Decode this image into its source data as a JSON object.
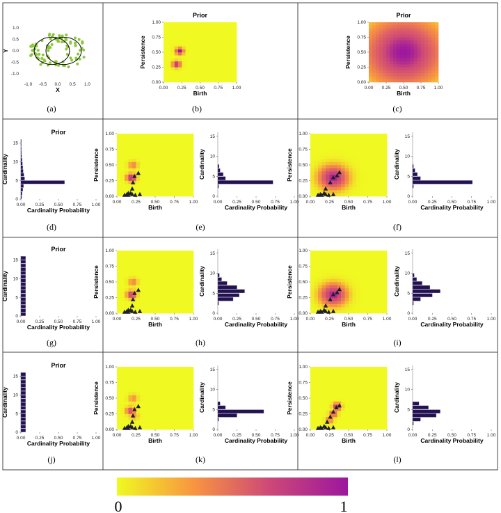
{
  "panels": [
    {
      "id": "a",
      "caption": "(a)",
      "kind": "scatter"
    },
    {
      "id": "b",
      "caption": "(b)",
      "kind": "heat",
      "title": "Prior"
    },
    {
      "id": "c",
      "caption": "(c)",
      "kind": "heat",
      "title": "Prior"
    },
    {
      "id": "d",
      "caption": "(d)",
      "kind": "card",
      "title": "Prior"
    },
    {
      "id": "e",
      "caption": "(e)",
      "kind": "heat+card"
    },
    {
      "id": "f",
      "caption": "(f)",
      "kind": "heat+card"
    },
    {
      "id": "g",
      "caption": "(g)",
      "kind": "card",
      "title": "Prior"
    },
    {
      "id": "h",
      "caption": "(h)",
      "kind": "heat+card"
    },
    {
      "id": "i",
      "caption": "(i)",
      "kind": "heat+card"
    },
    {
      "id": "j",
      "caption": "(j)",
      "kind": "card",
      "title": "Prior"
    },
    {
      "id": "k",
      "caption": "(k)",
      "kind": "heat+card"
    },
    {
      "id": "l",
      "caption": "(l)",
      "kind": "heat+card"
    }
  ],
  "labels": {
    "birth": "Birth",
    "persistence": "Persistence",
    "cardinality": "Cardinality",
    "card_prob": "Cardinality Probability",
    "x": "X",
    "y": "Y"
  },
  "ticks": {
    "unit": [
      "0.00",
      "0.25",
      "0.50",
      "0.75",
      "1.00"
    ],
    "xy": [
      "-1.0",
      "-0.5",
      "0.0",
      "0.5",
      "1.0"
    ],
    "card": [
      "0",
      "5",
      "10",
      "15"
    ]
  },
  "colorbar": {
    "min_label": "0",
    "max_label": "1",
    "colors": [
      "#f0f921",
      "#f89540",
      "#cc4778",
      "#9c179e"
    ]
  },
  "colors": {
    "point": "#8dc63f",
    "bar": "#24124f",
    "heat_low": "#eef23c",
    "tri": "#1f1f2e"
  },
  "chart_data": [
    {
      "panel": "a",
      "type": "scatter",
      "xlabel": "X",
      "ylabel": "Y",
      "xlim": [
        -1.25,
        1.25
      ],
      "ylim": [
        -1.25,
        1.25
      ],
      "circles": [
        {
          "cx": -0.2,
          "cy": 0.0,
          "r": 0.6
        },
        {
          "cx": 0.2,
          "cy": 0.0,
          "r": 0.6
        }
      ]
    },
    {
      "panel": "b",
      "type": "heatmap",
      "title": "Prior",
      "xlabel": "Birth",
      "ylabel": "Persistence",
      "xlim": [
        0,
        1
      ],
      "ylim": [
        0,
        1
      ],
      "blobs": [
        {
          "x": 0.18,
          "y": 0.3,
          "peak": 1.0,
          "sd": 0.035
        },
        {
          "x": 0.22,
          "y": 0.52,
          "peak": 1.0,
          "sd": 0.035
        }
      ]
    },
    {
      "panel": "c",
      "type": "heatmap",
      "title": "Prior",
      "xlabel": "Birth",
      "ylabel": "Persistence",
      "xlim": [
        0,
        1
      ],
      "ylim": [
        0,
        1
      ],
      "blobs": [
        {
          "x": 0.5,
          "y": 0.5,
          "peak": 1.0,
          "sd": 0.35
        }
      ]
    },
    {
      "panel": "d",
      "type": "bar",
      "title": "Prior",
      "xlabel": "Cardinality Probability",
      "ylabel": "Cardinality",
      "xlim": [
        0,
        1
      ],
      "ylim": [
        0,
        16
      ],
      "categories": [
        0,
        1,
        2,
        3,
        4,
        5,
        6,
        7,
        8,
        9,
        10,
        11,
        12,
        13,
        14,
        15
      ],
      "values": [
        0.01,
        0.015,
        0.025,
        0.035,
        0.58,
        0.05,
        0.04,
        0.03,
        0.025,
        0.02,
        0.015,
        0.01,
        0.008,
        0.006,
        0.005,
        0.004
      ]
    },
    {
      "panel": "e",
      "type": "heatmap+scatter",
      "xlabel": "Birth",
      "ylabel": "Persistence",
      "xlim": [
        0,
        1
      ],
      "ylim": [
        0,
        1
      ],
      "blobs": [
        {
          "x": 0.19,
          "y": 0.3,
          "peak": 1.0,
          "sd": 0.04
        },
        {
          "x": 0.21,
          "y": 0.5,
          "peak": 0.35,
          "sd": 0.04
        }
      ],
      "points": [
        [
          0.1,
          0.02
        ],
        [
          0.13,
          0.03
        ],
        [
          0.15,
          0.02
        ],
        [
          0.18,
          0.05
        ],
        [
          0.2,
          0.03
        ],
        [
          0.24,
          0.02
        ],
        [
          0.3,
          0.03
        ],
        [
          0.2,
          0.12
        ],
        [
          0.21,
          0.22
        ],
        [
          0.23,
          0.32
        ],
        [
          0.28,
          0.37
        ],
        [
          0.15,
          0.05
        ]
      ]
    },
    {
      "panel": "e",
      "type": "bar",
      "xlabel": "Cardinality Probability",
      "ylabel": "Cardinality",
      "xlim": [
        0,
        1
      ],
      "ylim": [
        0,
        16
      ],
      "categories": [
        2,
        3,
        4,
        5,
        6,
        7
      ],
      "values": [
        0.01,
        0.72,
        0.1,
        0.07,
        0.03,
        0.015
      ]
    },
    {
      "panel": "f",
      "type": "heatmap+scatter",
      "xlabel": "Birth",
      "ylabel": "Persistence",
      "xlim": [
        0,
        1
      ],
      "ylim": [
        0,
        1
      ],
      "blobs": [
        {
          "x": 0.3,
          "y": 0.3,
          "peak": 0.95,
          "sd": 0.12
        }
      ],
      "points": [
        [
          0.1,
          0.02
        ],
        [
          0.13,
          0.03
        ],
        [
          0.15,
          0.02
        ],
        [
          0.18,
          0.05
        ],
        [
          0.2,
          0.03
        ],
        [
          0.24,
          0.02
        ],
        [
          0.3,
          0.03
        ],
        [
          0.2,
          0.12
        ],
        [
          0.26,
          0.22
        ],
        [
          0.3,
          0.3
        ],
        [
          0.35,
          0.33
        ],
        [
          0.38,
          0.38
        ]
      ]
    },
    {
      "panel": "f",
      "type": "bar",
      "xlabel": "Cardinality Probability",
      "ylabel": "Cardinality",
      "xlim": [
        0,
        1
      ],
      "ylim": [
        0,
        16
      ],
      "categories": [
        2,
        3,
        4,
        5,
        6,
        7
      ],
      "values": [
        0.01,
        0.76,
        0.1,
        0.06,
        0.03,
        0.01
      ]
    },
    {
      "panel": "g",
      "type": "bar",
      "title": "Prior",
      "xlabel": "Cardinality Probability",
      "ylabel": "Cardinality",
      "xlim": [
        0,
        1
      ],
      "ylim": [
        0,
        16
      ],
      "categories": [
        0,
        1,
        2,
        3,
        4,
        5,
        6,
        7,
        8,
        9,
        10,
        11,
        12,
        13,
        14,
        15
      ],
      "values": [
        0.0625,
        0.0625,
        0.0625,
        0.0625,
        0.0625,
        0.0625,
        0.0625,
        0.0625,
        0.0625,
        0.0625,
        0.0625,
        0.0625,
        0.0625,
        0.0625,
        0.0625,
        0.0625
      ]
    },
    {
      "panel": "h",
      "type": "heatmap+scatter",
      "xlabel": "Birth",
      "ylabel": "Persistence",
      "xlim": [
        0,
        1
      ],
      "ylim": [
        0,
        1
      ],
      "blobs": [
        {
          "x": 0.19,
          "y": 0.3,
          "peak": 0.85,
          "sd": 0.04
        },
        {
          "x": 0.21,
          "y": 0.5,
          "peak": 0.35,
          "sd": 0.04
        }
      ],
      "points": [
        [
          0.1,
          0.02
        ],
        [
          0.13,
          0.03
        ],
        [
          0.15,
          0.02
        ],
        [
          0.18,
          0.05
        ],
        [
          0.2,
          0.03
        ],
        [
          0.24,
          0.02
        ],
        [
          0.3,
          0.03
        ],
        [
          0.2,
          0.12
        ],
        [
          0.21,
          0.22
        ],
        [
          0.23,
          0.32
        ],
        [
          0.28,
          0.37
        ],
        [
          0.15,
          0.05
        ]
      ]
    },
    {
      "panel": "h",
      "type": "bar",
      "xlabel": "Cardinality Probability",
      "ylabel": "Cardinality",
      "xlim": [
        0,
        1
      ],
      "ylim": [
        0,
        16
      ],
      "categories": [
        2,
        3,
        4,
        5,
        6,
        7,
        8,
        9
      ],
      "values": [
        0.01,
        0.2,
        0.28,
        0.35,
        0.25,
        0.12,
        0.05,
        0.02
      ]
    },
    {
      "panel": "i",
      "type": "heatmap+scatter",
      "xlabel": "Birth",
      "ylabel": "Persistence",
      "xlim": [
        0,
        1
      ],
      "ylim": [
        0,
        1
      ],
      "blobs": [
        {
          "x": 0.3,
          "y": 0.3,
          "peak": 0.95,
          "sd": 0.11
        }
      ],
      "points": [
        [
          0.1,
          0.02
        ],
        [
          0.13,
          0.03
        ],
        [
          0.15,
          0.02
        ],
        [
          0.18,
          0.05
        ],
        [
          0.2,
          0.03
        ],
        [
          0.24,
          0.02
        ],
        [
          0.3,
          0.03
        ],
        [
          0.2,
          0.12
        ],
        [
          0.26,
          0.22
        ],
        [
          0.3,
          0.3
        ],
        [
          0.35,
          0.33
        ],
        [
          0.38,
          0.38
        ]
      ]
    },
    {
      "panel": "i",
      "type": "bar",
      "xlabel": "Cardinality Probability",
      "ylabel": "Cardinality",
      "xlim": [
        0,
        1
      ],
      "ylim": [
        0,
        16
      ],
      "categories": [
        2,
        3,
        4,
        5,
        6,
        7,
        8,
        9
      ],
      "values": [
        0.01,
        0.1,
        0.25,
        0.35,
        0.22,
        0.12,
        0.05,
        0.02
      ]
    },
    {
      "panel": "j",
      "type": "bar",
      "title": "Prior",
      "xlabel": "Cardinality Probability",
      "ylabel": "Cardinality",
      "xlim": [
        0,
        1
      ],
      "ylim": [
        0,
        16
      ],
      "categories": [
        0,
        1,
        2,
        3,
        4,
        5,
        6,
        7,
        8,
        9,
        10,
        11,
        12,
        13,
        14,
        15
      ],
      "values": [
        0.0625,
        0.0625,
        0.0625,
        0.0625,
        0.0625,
        0.0625,
        0.0625,
        0.0625,
        0.0625,
        0.0625,
        0.0625,
        0.0625,
        0.0625,
        0.0625,
        0.0625,
        0.0625
      ]
    },
    {
      "panel": "k",
      "type": "heatmap+scatter",
      "xlabel": "Birth",
      "ylabel": "Persistence",
      "xlim": [
        0,
        1
      ],
      "ylim": [
        0,
        1
      ],
      "blobs": [
        {
          "x": 0.18,
          "y": 0.3,
          "peak": 0.7,
          "sd": 0.04
        },
        {
          "x": 0.21,
          "y": 0.5,
          "peak": 0.3,
          "sd": 0.04
        },
        {
          "x": 0.22,
          "y": 0.22,
          "peak": 0.25,
          "sd": 0.04
        }
      ],
      "points": [
        [
          0.1,
          0.02
        ],
        [
          0.13,
          0.03
        ],
        [
          0.15,
          0.02
        ],
        [
          0.18,
          0.05
        ],
        [
          0.2,
          0.03
        ],
        [
          0.24,
          0.02
        ],
        [
          0.3,
          0.03
        ],
        [
          0.2,
          0.12
        ],
        [
          0.21,
          0.22
        ],
        [
          0.23,
          0.32
        ],
        [
          0.28,
          0.37
        ],
        [
          0.15,
          0.05
        ]
      ]
    },
    {
      "panel": "k",
      "type": "bar",
      "xlabel": "Cardinality Probability",
      "ylabel": "Cardinality",
      "xlim": [
        0,
        1
      ],
      "ylim": [
        0,
        16
      ],
      "categories": [
        2,
        3,
        4,
        5,
        6
      ],
      "values": [
        0.01,
        0.25,
        0.6,
        0.1,
        0.03
      ]
    },
    {
      "panel": "l",
      "type": "heatmap+scatter",
      "xlabel": "Birth",
      "ylabel": "Persistence",
      "xlim": [
        0,
        1
      ],
      "ylim": [
        0,
        1
      ],
      "blobs": [
        {
          "x": 0.35,
          "y": 0.37,
          "peak": 0.95,
          "sd": 0.035
        },
        {
          "x": 0.3,
          "y": 0.25,
          "peak": 0.6,
          "sd": 0.035
        },
        {
          "x": 0.25,
          "y": 0.15,
          "peak": 0.4,
          "sd": 0.035
        }
      ],
      "points": [
        [
          0.1,
          0.02
        ],
        [
          0.13,
          0.03
        ],
        [
          0.15,
          0.02
        ],
        [
          0.18,
          0.05
        ],
        [
          0.2,
          0.03
        ],
        [
          0.24,
          0.02
        ],
        [
          0.3,
          0.03
        ],
        [
          0.22,
          0.12
        ],
        [
          0.26,
          0.2
        ],
        [
          0.3,
          0.28
        ],
        [
          0.34,
          0.35
        ],
        [
          0.38,
          0.38
        ]
      ]
    },
    {
      "panel": "l",
      "type": "bar",
      "xlabel": "Cardinality Probability",
      "ylabel": "Cardinality",
      "xlim": [
        0,
        1
      ],
      "ylim": [
        0,
        16
      ],
      "categories": [
        1,
        2,
        3,
        4,
        5,
        6
      ],
      "values": [
        0.01,
        0.1,
        0.3,
        0.35,
        0.2,
        0.08
      ]
    }
  ]
}
